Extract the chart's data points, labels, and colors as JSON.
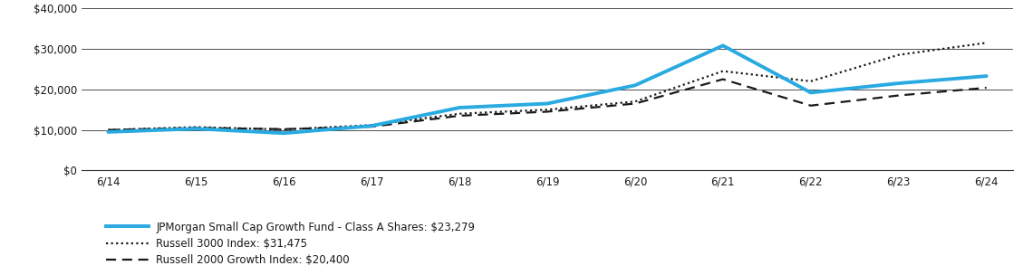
{
  "x_labels": [
    "6/14",
    "6/15",
    "6/16",
    "6/17",
    "6/18",
    "6/19",
    "6/20",
    "6/21",
    "6/22",
    "6/23",
    "6/24"
  ],
  "fund_values": [
    9500,
    10300,
    9200,
    11000,
    15500,
    16500,
    21000,
    30800,
    19200,
    21500,
    23279
  ],
  "russell3000_values": [
    10000,
    10700,
    10100,
    11200,
    14000,
    15000,
    17000,
    24500,
    22000,
    28500,
    31475
  ],
  "russell2000_values": [
    10000,
    10500,
    10200,
    10800,
    13500,
    14500,
    16500,
    22500,
    16000,
    18500,
    20400
  ],
  "fund_color": "#29aae1",
  "russell3000_color": "#1a1a1a",
  "russell2000_color": "#1a1a1a",
  "ylim": [
    0,
    40000
  ],
  "yticks": [
    0,
    10000,
    20000,
    30000,
    40000
  ],
  "ytick_labels": [
    "$0",
    "$10,000",
    "$20,000",
    "$30,000",
    "$40,000"
  ],
  "legend_labels": [
    "JPMorgan Small Cap Growth Fund - Class A Shares: $23,279",
    "Russell 3000 Index: $31,475",
    "Russell 2000 Growth Index: $20,400"
  ],
  "background_color": "#ffffff",
  "grid_color": "#333333",
  "font_color": "#1a1a1a",
  "fund_linewidth": 2.8,
  "index_linewidth": 1.6,
  "dotted_dot_size": 2.5,
  "dash_size": 6
}
